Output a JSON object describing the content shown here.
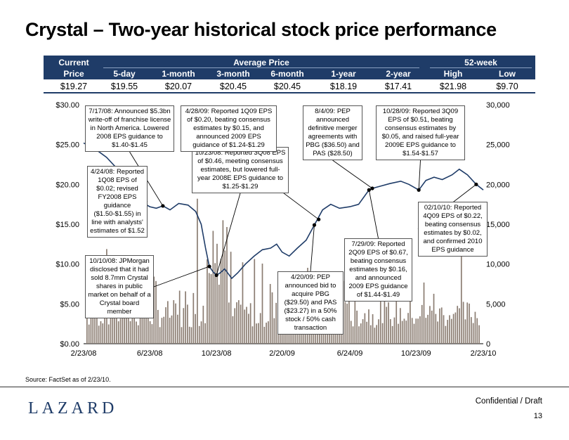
{
  "title": "Crystal – Two-year historical stock price performance",
  "table": {
    "current_label": "Current",
    "price_label": "Price",
    "average_label": "Average Price",
    "week52_label": "52-week",
    "columns": [
      "5-day",
      "1-month",
      "3-month",
      "6-month",
      "1-year",
      "2-year",
      "High",
      "Low"
    ],
    "values": [
      "$19.27",
      "$19.55",
      "$20.07",
      "$20.45",
      "$20.45",
      "$18.19",
      "$17.41",
      "$21.98",
      "$9.70"
    ]
  },
  "chart_data": {
    "type": "line",
    "x_ticks": [
      "2/23/08",
      "6/23/08",
      "10/23/08",
      "2/20/09",
      "6/24/09",
      "10/23/09",
      "2/23/10"
    ],
    "left_axis": {
      "ticks": [
        "$0.00",
        "$5.00",
        "$10.00",
        "$15.00",
        "$20.00",
        "$25.00",
        "$30.00"
      ],
      "ylim": [
        0,
        30
      ]
    },
    "right_axis": {
      "ticks": [
        "0",
        "5,000",
        "10,000",
        "15,000",
        "20,000",
        "25,000",
        "30,000"
      ],
      "ylim": [
        0,
        30000
      ]
    },
    "series": [
      {
        "kind": "price",
        "color": "#1f3c68",
        "points": [
          [
            "2/23/08",
            25.2
          ],
          [
            "3/5/08",
            24.8
          ],
          [
            "3/20/08",
            24.2
          ],
          [
            "4/5/08",
            23.4
          ],
          [
            "4/24/08",
            22.0
          ],
          [
            "5/10/08",
            20.5
          ],
          [
            "5/25/08",
            18.6
          ],
          [
            "6/8/08",
            17.8
          ],
          [
            "6/23/08",
            17.2
          ],
          [
            "7/5/08",
            17.0
          ],
          [
            "7/17/08",
            17.3
          ],
          [
            "7/30/08",
            16.8
          ],
          [
            "8/15/08",
            17.6
          ],
          [
            "9/1/08",
            17.4
          ],
          [
            "9/15/08",
            16.6
          ],
          [
            "9/25/08",
            15.0
          ],
          [
            "10/3/08",
            12.0
          ],
          [
            "10/10/08",
            9.7
          ],
          [
            "10/17/08",
            9.0
          ],
          [
            "10/23/08",
            8.6
          ],
          [
            "10/30/08",
            8.9
          ],
          [
            "11/7/08",
            9.4
          ],
          [
            "11/20/08",
            8.2
          ],
          [
            "12/1/08",
            8.9
          ],
          [
            "12/15/08",
            10.0
          ],
          [
            "12/31/08",
            11.0
          ],
          [
            "1/15/09",
            11.8
          ],
          [
            "1/30/09",
            12.0
          ],
          [
            "2/10/09",
            12.5
          ],
          [
            "2/20/09",
            11.5
          ],
          [
            "3/5/09",
            11.0
          ],
          [
            "3/20/09",
            12.0
          ],
          [
            "4/5/09",
            13.0
          ],
          [
            "4/20/09",
            14.9
          ],
          [
            "5/5/09",
            16.8
          ],
          [
            "5/20/09",
            17.5
          ],
          [
            "6/5/09",
            17.0
          ],
          [
            "6/24/09",
            17.2
          ],
          [
            "7/10/09",
            17.5
          ],
          [
            "7/29/09",
            19.3
          ],
          [
            "8/4/09",
            19.5
          ],
          [
            "8/20/09",
            19.8
          ],
          [
            "9/5/09",
            20.1
          ],
          [
            "9/25/09",
            20.4
          ],
          [
            "10/10/09",
            20.0
          ],
          [
            "10/28/09",
            19.3
          ],
          [
            "11/10/09",
            20.5
          ],
          [
            "11/25/09",
            20.9
          ],
          [
            "12/10/09",
            20.6
          ],
          [
            "12/28/09",
            21.2
          ],
          [
            "1/10/10",
            21.9
          ],
          [
            "1/25/10",
            21.2
          ],
          [
            "2/10/10",
            20.0
          ],
          [
            "2/23/10",
            19.3
          ]
        ]
      }
    ],
    "events": [
      {
        "date": "4/24/08",
        "price": 22.0,
        "text": "4/24/08:  Reported 1Q08 EPS of $0.02; revised FY2008 EPS guidance ($1.50-$1.55) in line with analysts' estimates of $1.52"
      },
      {
        "date": "7/17/08",
        "price": 17.3,
        "text": "7/17/08:  Announced $5.3bn write-off of franchise license in North America.  Lowered 2008 EPS guidance to $1.40-$1.45"
      },
      {
        "date": "10/10/08",
        "price": 9.7,
        "text": "10/10/08:  JPMorgan disclosed that it had sold 8.7mm Crystal shares in public market on behalf of a Crystal board member"
      },
      {
        "date": "10/23/08",
        "price": 8.6,
        "text": "10/23/08:  Reported 3Q08 EPS of $0.46, meeting consensus estimates, but lowered full-year 2008E EPS guidance to $1.25-$1.29"
      },
      {
        "date": "4/28/09",
        "price": 15.6,
        "text": "4/28/09:  Reported 1Q09 EPS of $0.20, beating consensus estimates by $0.15, and announced 2009 EPS guidance of $1.24-$1.29"
      },
      {
        "date": "4/20/09",
        "price": 14.9,
        "text": "4/20/09:  PEP announced bid to acquire PBG ($29.50) and PAS ($23.27) in a 50% stock / 50% cash transaction"
      },
      {
        "date": "8/4/09",
        "price": 19.5,
        "text": "8/4/09:  PEP announced definitive merger agreements with PBG ($36.50) and PAS ($28.50)"
      },
      {
        "date": "7/29/09",
        "price": 19.3,
        "text": "7/29/09:  Reported 2Q09 EPS of $0.67, beating consensus estimates by $0.16, and announced 2009 EPS guidance of $1.44-$1.49"
      },
      {
        "date": "10/28/09",
        "price": 19.3,
        "text": "10/28/09: Reported 3Q09 EPS of $0.51, beating consensus estimates by $0.05, and raised full-year 2009E EPS guidance to $1.54-$1.57"
      },
      {
        "date": "2/10/10",
        "price": 20.0,
        "text": "02/10/10: Reported 4Q09 EPS of $0.22, beating consensus estimates by $0.02, and confirmed 2010 EPS guidance"
      }
    ],
    "volume_color": "#8b7d72",
    "volume_typical_range": [
      2000,
      5500
    ]
  },
  "source": "Source:  FactSet as of 2/23/10.",
  "footer": {
    "logo": "LAZARD",
    "confidential": "Confidential / Draft",
    "page": "13"
  },
  "colors": {
    "navy": "#1f3c68",
    "volume": "#8b7d72"
  }
}
